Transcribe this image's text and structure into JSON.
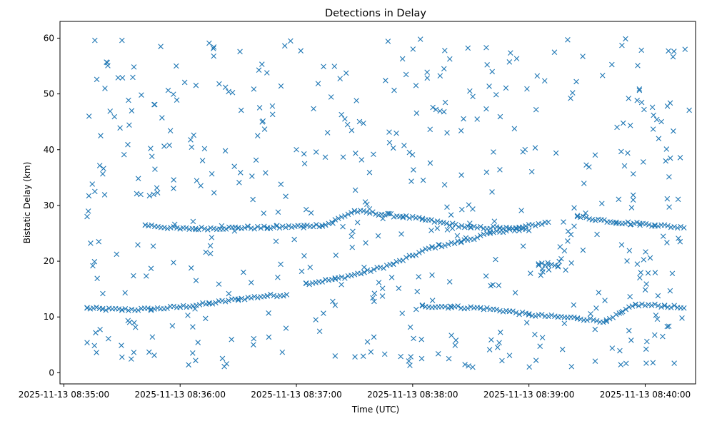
{
  "chart_data": {
    "type": "scatter",
    "title": "Detections in Delay",
    "xlabel": "Time (UTC)",
    "ylabel": "Bistatic Delay (km)",
    "marker": "x",
    "color": "#1f77b4",
    "grid": false,
    "legend": "none",
    "xlim": [
      "2025-11-13 08:34:58",
      "2025-11-13 08:40:26"
    ],
    "ylim": [
      -2,
      63
    ],
    "x_ticks": [
      "2025-11-13 08:35:00",
      "2025-11-13 08:36:00",
      "2025-11-13 08:37:00",
      "2025-11-13 08:38:00",
      "2025-11-13 08:39:00",
      "2025-11-13 08:40:00"
    ],
    "y_ticks": [
      "0",
      "10",
      "20",
      "30",
      "40",
      "50",
      "60"
    ],
    "time_range": [
      "2025-11-13 08:35:12",
      "2025-11-13 08:40:24"
    ],
    "series": [
      {
        "name": "",
        "points": [
          [
            "2025-11-13 08:35:12",
            11.6
          ],
          [
            "2025-11-13 08:35:20",
            11.4
          ],
          [
            "2025-11-13 08:35:30",
            11.3
          ],
          [
            "2025-11-13 08:35:45",
            11.4
          ],
          [
            "2025-11-13 08:36:00",
            11.8
          ],
          [
            "2025-11-13 08:36:15",
            12.4
          ],
          [
            "2025-11-13 08:36:30",
            13.2
          ],
          [
            "2025-11-13 08:36:45",
            13.8
          ],
          [
            "2025-11-13 08:36:55",
            14.0
          ],
          [
            "2025-11-13 08:37:05",
            16.0
          ],
          [
            "2025-11-13 08:37:20",
            16.8
          ],
          [
            "2025-11-13 08:37:35",
            18.0
          ],
          [
            "2025-11-13 08:37:50",
            19.5
          ],
          [
            "2025-11-13 08:38:00",
            21.0
          ],
          [
            "2025-11-13 08:38:10",
            22.5
          ],
          [
            "2025-11-13 08:38:25",
            23.5
          ],
          [
            "2025-11-13 08:38:40",
            25.0
          ],
          [
            "2025-11-13 08:38:55",
            26.0
          ],
          [
            "2025-11-13 08:39:10",
            27.0
          ],
          [
            "2025-11-13 08:35:42",
            26.5
          ],
          [
            "2025-11-13 08:36:00",
            25.8
          ],
          [
            "2025-11-13 08:36:30",
            26.0
          ],
          [
            "2025-11-13 08:36:45",
            26.0
          ],
          [
            "2025-11-13 08:37:15",
            26.5
          ],
          [
            "2025-11-13 08:37:30",
            29.0
          ],
          [
            "2025-11-13 08:37:55",
            28.0
          ],
          [
            "2025-11-13 08:38:05",
            27.5
          ],
          [
            "2025-11-13 08:38:30",
            26.0
          ],
          [
            "2025-11-13 08:38:45",
            26.0
          ],
          [
            "2025-11-13 08:39:00",
            25.5
          ],
          [
            "2025-11-13 08:38:05",
            12.0
          ],
          [
            "2025-11-13 08:38:20",
            11.8
          ],
          [
            "2025-11-13 08:38:35",
            11.6
          ],
          [
            "2025-11-13 08:38:50",
            11.0
          ],
          [
            "2025-11-13 08:39:00",
            10.4
          ],
          [
            "2025-11-13 08:39:15",
            10.0
          ],
          [
            "2025-11-13 08:39:25",
            9.8
          ],
          [
            "2025-11-13 08:39:40",
            9.2
          ],
          [
            "2025-11-13 08:39:55",
            12.2
          ],
          [
            "2025-11-13 08:40:10",
            12.0
          ],
          [
            "2025-11-13 08:40:20",
            11.6
          ],
          [
            "2025-11-13 08:39:05",
            19.5
          ],
          [
            "2025-11-13 08:39:15",
            19.0
          ],
          [
            "2025-11-13 08:39:25",
            28.0
          ],
          [
            "2025-11-13 08:39:45",
            27.0
          ],
          [
            "2025-11-13 08:40:05",
            26.5
          ],
          [
            "2025-11-13 08:40:20",
            26.0
          ],
          [
            "2025-11-13 08:35:16",
            59.6
          ],
          [
            "2025-11-13 08:35:30",
            59.6
          ],
          [
            "2025-11-13 08:35:13",
            46.0
          ],
          [
            "2025-11-13 08:35:17",
            52.6
          ],
          [
            "2025-11-13 08:35:19",
            42.5
          ],
          [
            "2025-11-13 08:35:22",
            55.7
          ],
          [
            "2025-11-13 08:35:28",
            52.9
          ],
          [
            "2025-11-13 08:35:29",
            43.9
          ],
          [
            "2025-11-13 08:35:33",
            40.9
          ],
          [
            "2025-11-13 08:35:12",
            28.0
          ],
          [
            "2025-11-13 08:35:16",
            32.5
          ],
          [
            "2025-11-13 08:35:18",
            23.5
          ],
          [
            "2025-11-13 08:35:30",
            2.8
          ],
          [
            "2025-11-13 08:35:12",
            5.4
          ],
          [
            "2025-11-13 08:35:23",
            6.1
          ],
          [
            "2025-11-13 08:35:50",
            58.5
          ],
          [
            "2025-11-13 08:35:58",
            55.0
          ],
          [
            "2025-11-13 08:35:40",
            49.8
          ],
          [
            "2025-11-13 08:35:55",
            43.4
          ],
          [
            "2025-11-13 08:35:47",
            36.5
          ],
          [
            "2025-11-13 08:35:45",
            18.7
          ],
          [
            "2025-11-13 08:35:44",
            3.7
          ],
          [
            "2025-11-13 08:35:56",
            8.4
          ],
          [
            "2025-11-13 08:36:07",
            42.6
          ],
          [
            "2025-11-13 08:36:08",
            2.2
          ],
          [
            "2025-11-13 08:36:15",
            59.1
          ],
          [
            "2025-11-13 08:36:25",
            50.4
          ],
          [
            "2025-11-13 08:36:28",
            37.0
          ],
          [
            "2025-11-13 08:36:20",
            15.9
          ],
          [
            "2025-11-13 08:36:24",
            1.6
          ],
          [
            "2025-11-13 08:36:40",
            42.5
          ],
          [
            "2025-11-13 08:36:38",
            6.1
          ],
          [
            "2025-11-13 08:36:50",
            26.4
          ],
          [
            "2025-11-13 08:36:52",
            33.8
          ],
          [
            "2025-11-13 08:36:57",
            59.5
          ],
          [
            "2025-11-13 08:37:00",
            40.0
          ],
          [
            "2025-11-13 08:37:10",
            9.5
          ],
          [
            "2025-11-13 08:37:14",
            54.9
          ],
          [
            "2025-11-13 08:37:20",
            3.0
          ],
          [
            "2025-11-13 08:37:25",
            45.5
          ],
          [
            "2025-11-13 08:37:31",
            48.8
          ],
          [
            "2025-11-13 08:37:40",
            6.4
          ],
          [
            "2025-11-13 08:37:46",
            52.4
          ],
          [
            "2025-11-13 08:37:50",
            40.3
          ],
          [
            "2025-11-13 08:37:58",
            2.1
          ],
          [
            "2025-11-13 08:38:04",
            59.8
          ],
          [
            "2025-11-13 08:38:12",
            47.2
          ],
          [
            "2025-11-13 08:38:20",
            6.7
          ],
          [
            "2025-11-13 08:38:25",
            43.4
          ],
          [
            "2025-11-13 08:38:31",
            1.0
          ],
          [
            "2025-11-13 08:38:38",
            58.3
          ],
          [
            "2025-11-13 08:38:45",
            36.4
          ],
          [
            "2025-11-13 08:38:50",
            3.1
          ],
          [
            "2025-11-13 08:38:59",
            50.9
          ],
          [
            "2025-11-13 08:39:07",
            6.3
          ],
          [
            "2025-11-13 08:39:14",
            39.4
          ],
          [
            "2025-11-13 08:39:20",
            59.7
          ],
          [
            "2025-11-13 08:39:22",
            1.1
          ],
          [
            "2025-11-13 08:39:31",
            36.9
          ],
          [
            "2025-11-13 08:39:38",
            53.3
          ],
          [
            "2025-11-13 08:39:43",
            4.4
          ],
          [
            "2025-11-13 08:39:48",
            58.7
          ],
          [
            "2025-11-13 08:39:53",
            29.6
          ],
          [
            "2025-11-13 08:39:59",
            37.8
          ],
          [
            "2025-11-13 08:40:04",
            1.8
          ],
          [
            "2025-11-13 08:40:06",
            45.4
          ],
          [
            "2025-11-13 08:40:09",
            6.5
          ],
          [
            "2025-11-13 08:40:11",
            40.1
          ],
          [
            "2025-11-13 08:40:12",
            57.7
          ],
          [
            "2025-11-13 08:40:14",
            17.8
          ],
          [
            "2025-11-13 08:40:15",
            1.7
          ],
          [
            "2025-11-13 08:40:17",
            31.1
          ],
          [
            "2025-11-13 08:40:18",
            23.5
          ],
          [
            "2025-11-13 08:40:19",
            9.8
          ]
        ]
      }
    ]
  }
}
